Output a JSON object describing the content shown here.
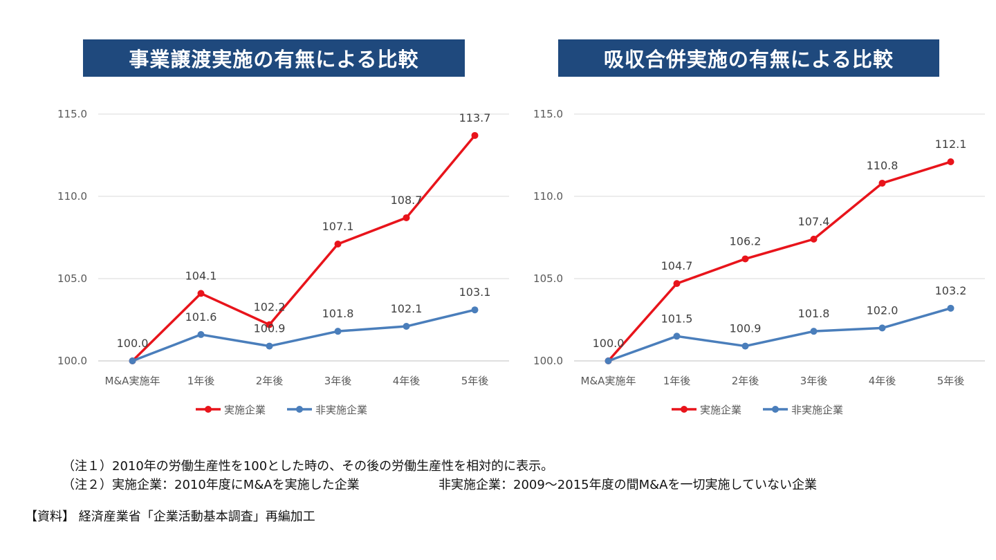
{
  "chart_data": [
    {
      "type": "line",
      "title": "事業譲渡実施の有無による比較",
      "categories": [
        "M&A実施年",
        "1年後",
        "2年後",
        "3年後",
        "4年後",
        "5年後"
      ],
      "ylim": [
        100,
        115
      ],
      "yticks": [
        "100.0",
        "105.0",
        "110.0",
        "115.0"
      ],
      "grid": true,
      "legend": "bottom",
      "series": [
        {
          "name": "実施企業",
          "color": "#E8141B",
          "values": [
            100.0,
            104.1,
            102.2,
            107.1,
            108.7,
            113.7
          ]
        },
        {
          "name": "非実施企業",
          "color": "#4A7EBB",
          "values": [
            100.0,
            101.6,
            100.9,
            101.8,
            102.1,
            103.1
          ]
        }
      ]
    },
    {
      "type": "line",
      "title": "吸収合併実施の有無による比較",
      "categories": [
        "M&A実施年",
        "1年後",
        "2年後",
        "3年後",
        "4年後",
        "5年後"
      ],
      "ylim": [
        100,
        115
      ],
      "yticks": [
        "100.0",
        "105.0",
        "110.0",
        "115.0"
      ],
      "grid": true,
      "legend": "bottom",
      "series": [
        {
          "name": "実施企業",
          "color": "#E8141B",
          "values": [
            100.0,
            104.7,
            106.2,
            107.4,
            110.8,
            112.1
          ]
        },
        {
          "name": "非実施企業",
          "color": "#4A7EBB",
          "values": [
            100.0,
            101.5,
            100.9,
            101.8,
            102.0,
            103.2
          ]
        }
      ]
    }
  ],
  "banner_color": "#1F497D",
  "notes": {
    "note1": "（注１）2010年の労働生産性を100とした時の、その後の労働生産性を相対的に表示。",
    "note2a": "（注２）実施企業：2010年度にM&Aを実施した企業",
    "note2b": "非実施企業：2009～2015年度の間M&Aを一切実施していない企業",
    "source": "【資料】 経済産業省「企業活動基本調査」再編加工"
  }
}
